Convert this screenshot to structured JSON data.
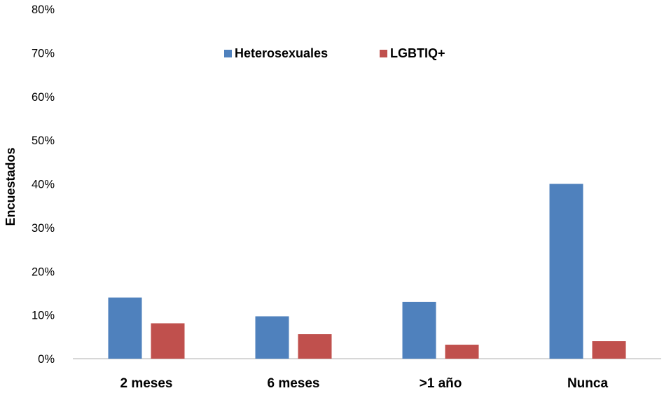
{
  "chart_data": {
    "type": "bar",
    "title": "",
    "xlabel": "",
    "ylabel": "Encuestados",
    "categories": [
      "2 meses",
      "6 meses",
      ">1 año",
      "Nunca"
    ],
    "series": [
      {
        "name": "Heterosexuales",
        "values": [
          14,
          9.7,
          13,
          40
        ],
        "color": "#4f81bd"
      },
      {
        "name": "LGBTIQ+",
        "values": [
          8.1,
          5.6,
          3.2,
          4
        ],
        "color": "#c0504d"
      }
    ],
    "ylim": [
      0,
      80
    ],
    "yticks": [
      0,
      10,
      20,
      30,
      40,
      50,
      60,
      70,
      80
    ],
    "ytick_labels": [
      "0%",
      "10%",
      "20%",
      "30%",
      "40%",
      "50%",
      "60%",
      "70%",
      "80%"
    ],
    "grid": false,
    "legend_position": "top-center"
  }
}
